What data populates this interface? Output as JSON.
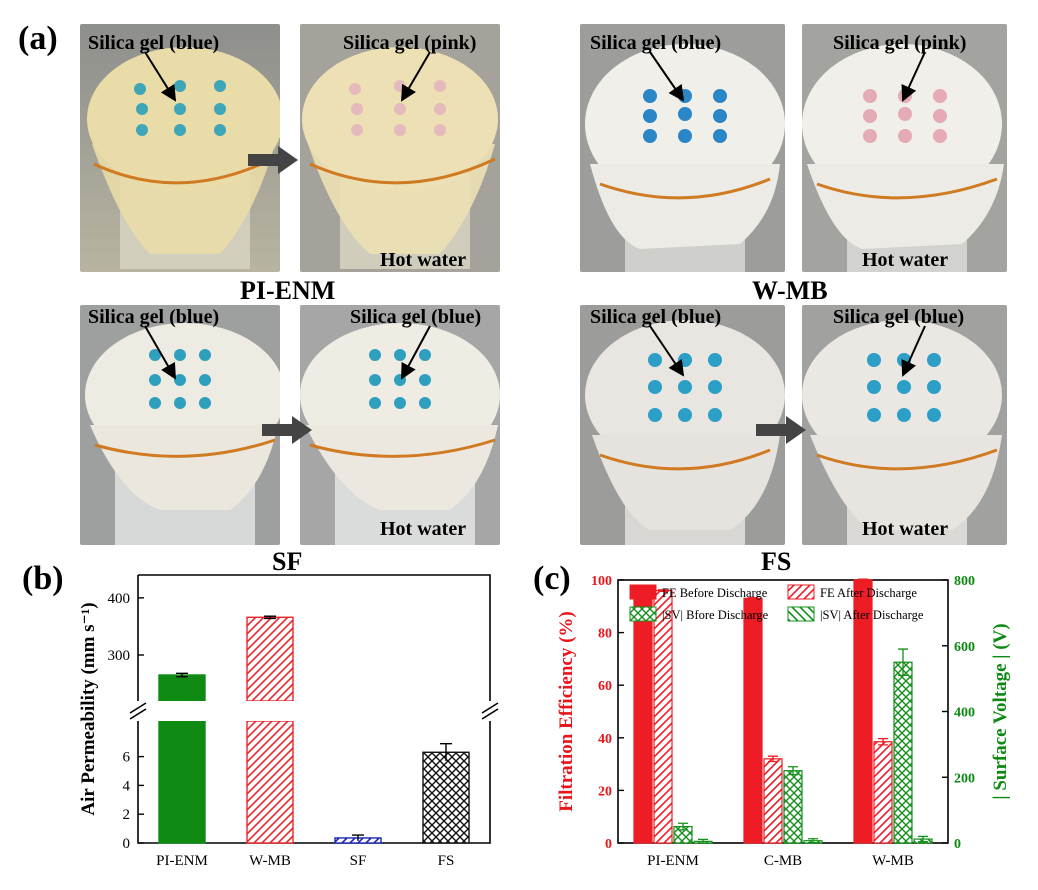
{
  "panel_a": {
    "letter": "(a)",
    "sample_labels": [
      "PI-ENM",
      "W-MB",
      "SF",
      "FS"
    ],
    "photos": [
      {
        "caption": "Silica gel (blue)",
        "hot_water": "",
        "cloth_color": "#e9dca8",
        "gel_color": "#3fa6b8"
      },
      {
        "caption": "Silica gel (pink)",
        "hot_water": "Hot water",
        "cloth_color": "#ece0b4",
        "gel_color": "#e6b9bd"
      },
      {
        "caption": "Silica gel (blue)",
        "hot_water": "",
        "cloth_color": "#f0efea",
        "gel_color": "#2a86c6"
      },
      {
        "caption": "Silica gel (pink)",
        "hot_water": "Hot water",
        "cloth_color": "#f1efe9",
        "gel_color": "#e4aab6"
      },
      {
        "caption": "Silica gel (blue)",
        "hot_water": "",
        "cloth_color": "#eeebe2",
        "gel_color": "#2f9fbe"
      },
      {
        "caption": "Silica gel (blue)",
        "hot_water": "Hot water",
        "cloth_color": "#efece4",
        "gel_color": "#2f9fbe"
      },
      {
        "caption": "Silica gel (blue)",
        "hot_water": "",
        "cloth_color": "#e9e6e1",
        "gel_color": "#2b9fc6"
      },
      {
        "caption": "Silica gel (blue)",
        "hot_water": "Hot water",
        "cloth_color": "#ebe8e3",
        "gel_color": "#2b9fc6"
      }
    ]
  },
  "chart_data": [
    {
      "panel": "(b)",
      "type": "bar",
      "title": "",
      "ylabel": "Air Permeability (mm s⁻¹)",
      "categories": [
        "PI-ENM",
        "W-MB",
        "SF",
        "FS"
      ],
      "values": [
        265,
        366,
        0.35,
        6.3
      ],
      "errors": [
        3,
        2,
        0.2,
        0.6
      ],
      "broken_axis": {
        "lower_range": [
          0,
          7.5
        ],
        "upper_range": [
          230,
          440
        ]
      },
      "yticks_lower": [
        0,
        2,
        4,
        6
      ],
      "yticks_upper": [
        300,
        400
      ],
      "fills": [
        {
          "color": "#0f8a12",
          "pattern": "solid"
        },
        {
          "color": "#e8262b",
          "pattern": "diagonal"
        },
        {
          "color": "#1d27b5",
          "pattern": "diagonal"
        },
        {
          "color": "#111111",
          "pattern": "crosshatch"
        }
      ]
    },
    {
      "panel": "(c)",
      "type": "bar",
      "title": "",
      "categories": [
        "PI-ENM",
        "C-MB",
        "W-MB"
      ],
      "ylabel_left": "Filtration Efficiency (%)",
      "ylabel_right": "| Surface Voltage | (V)",
      "ylim_left": [
        0,
        100
      ],
      "ylim_right": [
        0,
        800
      ],
      "yticks_left": [
        0,
        20,
        40,
        60,
        80,
        100
      ],
      "yticks_right": [
        0,
        200,
        400,
        600,
        800
      ],
      "left_color": "#e8151b",
      "right_color": "#0e8a14",
      "legend_position": "top",
      "series": [
        {
          "name": "FE Before Discharge",
          "axis": "left",
          "values": [
            96,
            93,
            100
          ],
          "errors": [
            0.3,
            0.3,
            0.3
          ],
          "color": "#ee1c24",
          "pattern": "solid"
        },
        {
          "name": "FE After Discharge",
          "axis": "left",
          "values": [
            96,
            32,
            38.5
          ],
          "errors": [
            0.3,
            1,
            1.2
          ],
          "color": "#ee1c24",
          "pattern": "diagonal"
        },
        {
          "name": "|SV| Bfore Discharge",
          "axis": "right",
          "values": [
            50,
            220,
            550
          ],
          "errors": [
            10,
            12,
            40
          ],
          "color": "#13901a",
          "pattern": "crosshatch"
        },
        {
          "name": "|SV| After Discharge",
          "axis": "right",
          "values": [
            5,
            7,
            12
          ],
          "errors": [
            6,
            6,
            8
          ],
          "color": "#13901a",
          "pattern": "diagonal-back"
        }
      ]
    }
  ]
}
